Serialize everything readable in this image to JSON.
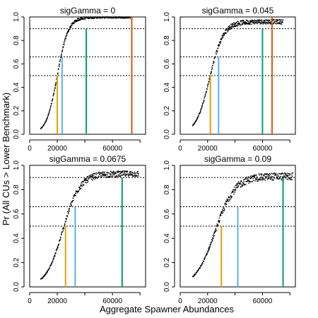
{
  "chart_data": {
    "type": "scatter",
    "ylabel": "Pr (All CUs > Lower Benchmark)",
    "xlabel": "Aggregate Spawner Abundances",
    "xlim": [
      0,
      84000
    ],
    "ylim": [
      0,
      1
    ],
    "x_ticks": [
      0,
      20000,
      60000
    ],
    "x_tick_labels": [
      "0",
      "20000",
      "60000"
    ],
    "y_ticks": [
      0,
      0.2,
      0.4,
      0.6,
      0.8,
      1
    ],
    "y_tick_labels": [
      "0.0",
      "0.2",
      "0.4",
      "0.6",
      "0.8",
      "1.0"
    ],
    "reference_lines_y": [
      1.0,
      0.9,
      0.66,
      0.5
    ],
    "benchmark_colors": [
      "#E69F00",
      "#56B4E9",
      "#009E73",
      "#D55E00"
    ],
    "panels": [
      {
        "title": "sigGamma = 0",
        "curve": {
          "x_start": 8000,
          "x_end": 73000,
          "midpoint": 20000,
          "rate": 0.00025,
          "scale": 1.0,
          "jitter": 0.012
        },
        "benchmarks": [
          {
            "x": 20000,
            "y": 0.5,
            "color": "#E69F00"
          },
          {
            "x": 23500,
            "y": 0.66,
            "color": "#56B4E9"
          },
          {
            "x": 41000,
            "y": 0.9,
            "color": "#009E73"
          },
          {
            "x": 74000,
            "y": 1.0,
            "color": "#D55E00"
          }
        ]
      },
      {
        "title": "sigGamma = 0.045",
        "curve": {
          "x_start": 9000,
          "x_end": 75000,
          "midpoint": 21500,
          "rate": 0.0002,
          "scale": 0.96,
          "jitter": 0.02
        },
        "benchmarks": [
          {
            "x": 22000,
            "y": 0.5,
            "color": "#E69F00"
          },
          {
            "x": 28000,
            "y": 0.66,
            "color": "#56B4E9"
          },
          {
            "x": 60000,
            "y": 0.9,
            "color": "#009E73"
          },
          {
            "x": 67000,
            "y": 1.0,
            "color": "#D55E00"
          }
        ]
      },
      {
        "title": "sigGamma = 0.0675",
        "curve": {
          "x_start": 8000,
          "x_end": 79000,
          "midpoint": 24000,
          "rate": 0.000165,
          "scale": 0.93,
          "jitter": 0.025
        },
        "benchmarks": [
          {
            "x": 26000,
            "y": 0.5,
            "color": "#E69F00"
          },
          {
            "x": 33000,
            "y": 0.66,
            "color": "#56B4E9"
          },
          {
            "x": 67000,
            "y": 0.9,
            "color": "#009E73"
          }
        ]
      },
      {
        "title": "sigGamma = 0.09",
        "curve": {
          "x_start": 9000,
          "x_end": 82000,
          "midpoint": 25500,
          "rate": 0.00014,
          "scale": 0.91,
          "jitter": 0.03
        },
        "benchmarks": [
          {
            "x": 30000,
            "y": 0.5,
            "color": "#E69F00"
          },
          {
            "x": 42000,
            "y": 0.66,
            "color": "#56B4E9"
          },
          {
            "x": 75000,
            "y": 0.9,
            "color": "#009E73"
          }
        ]
      }
    ]
  }
}
